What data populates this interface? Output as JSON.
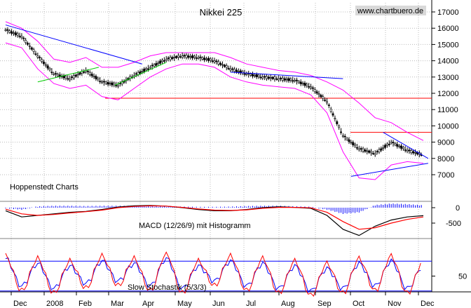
{
  "chart_data": {
    "type": "line",
    "title": "Nikkei 225",
    "watermark": "www.chartbuero.de",
    "source_label": "Hoppenstedt Charts",
    "x_labels": [
      "Dec",
      "2008",
      "Feb",
      "Mar",
      "Apr",
      "May",
      "Jun",
      "Jul",
      "Aug",
      "Sep",
      "Oct",
      "Nov",
      "Dec"
    ],
    "price_panel": {
      "y_ticks": [
        7000,
        8000,
        9000,
        10000,
        11000,
        12000,
        13000,
        14000,
        15000,
        16000,
        17000
      ],
      "y_range": [
        6500,
        17300
      ],
      "series": [
        {
          "values": [
            15900,
            15500,
            14300,
            13200,
            12900,
            13400,
            12700,
            12500,
            13100,
            13600,
            14100,
            14300,
            14200,
            14000,
            13500,
            13200,
            13000,
            12900,
            12800,
            12400,
            11500,
            9400,
            8600,
            8300,
            9000,
            8500,
            8200
          ]
        }
      ],
      "bollinger_upper": [
        16400,
        16000,
        15200,
        14100,
        13900,
        14200,
        13600,
        13600,
        13900,
        14300,
        14500,
        14500,
        14500,
        14500,
        14200,
        13800,
        13600,
        13400,
        13300,
        13100,
        12700,
        12200,
        11400,
        10500,
        10200,
        9600,
        9100
      ],
      "bollinger_lower": [
        15100,
        14800,
        13500,
        12600,
        12300,
        12500,
        11800,
        11600,
        12300,
        13000,
        13500,
        13800,
        13800,
        13600,
        13000,
        12700,
        12500,
        12400,
        12300,
        11900,
        10800,
        8400,
        6800,
        6700,
        7600,
        7800,
        7700
      ],
      "horizontal_levels": [
        11700,
        9600
      ],
      "trendlines": [
        {
          "color": "#0000ff",
          "points": [
            [
              0,
              16200
            ],
            [
              8.5,
              13800
            ]
          ]
        },
        {
          "color": "#00cc00",
          "points": [
            [
              2.0,
              12700
            ],
            [
              5.8,
              13600
            ]
          ]
        },
        {
          "color": "#00cc00",
          "points": [
            [
              6.8,
              12500
            ],
            [
              10.0,
              13900
            ]
          ]
        },
        {
          "color": "#0000ff",
          "points": [
            [
              14.0,
              13300
            ],
            [
              21.0,
              12900
            ]
          ]
        },
        {
          "color": "#0000ff",
          "points": [
            [
              23.5,
              9600
            ],
            [
              26.3,
              8000
            ]
          ]
        },
        {
          "color": "#0000ff",
          "points": [
            [
              21.5,
              6900
            ],
            [
              26.3,
              7700
            ]
          ]
        }
      ]
    },
    "macd_panel": {
      "label": "MACD (12/26/9) mit Histogramm",
      "y_ticks": [
        0,
        -500
      ],
      "macd": [
        -100,
        -300,
        -250,
        -200,
        -150,
        -120,
        -60,
        20,
        60,
        70,
        50,
        0,
        -60,
        -100,
        -100,
        -60,
        0,
        30,
        10,
        -20,
        -250,
        -700,
        -900,
        -600,
        -400,
        -300,
        -260
      ],
      "signal": [
        -50,
        -200,
        -250,
        -220,
        -170,
        -130,
        -80,
        0,
        40,
        60,
        50,
        10,
        -40,
        -80,
        -90,
        -70,
        -20,
        10,
        10,
        -5,
        -150,
        -450,
        -700,
        -650,
        -500,
        -380,
        -300
      ]
    },
    "stoch_panel": {
      "label": "Slow Stochastik (5/3/3)",
      "y_ticks": [
        50
      ],
      "levels": [
        80,
        20
      ],
      "k": [
        90,
        20,
        85,
        15,
        80,
        25,
        90,
        30,
        85,
        20,
        95,
        15,
        80,
        30,
        90,
        20,
        85,
        15,
        80,
        10,
        75,
        15,
        85,
        20,
        90,
        15,
        80
      ],
      "d": [
        85,
        30,
        75,
        25,
        70,
        35,
        80,
        40,
        75,
        30,
        85,
        25,
        70,
        40,
        80,
        30,
        75,
        25,
        70,
        20,
        65,
        25,
        75,
        30,
        80,
        25,
        70
      ]
    }
  },
  "colors": {
    "price": "#000000",
    "bollinger": "#ff00ff",
    "level": "#ff0000",
    "macd": "#000000",
    "signal": "#ff0000",
    "histogram": "#0000ff",
    "stoch_k": "#ff0000",
    "stoch_d": "#0000ff",
    "stoch_level": "#0000ff",
    "grid": "#bbbbbb"
  }
}
